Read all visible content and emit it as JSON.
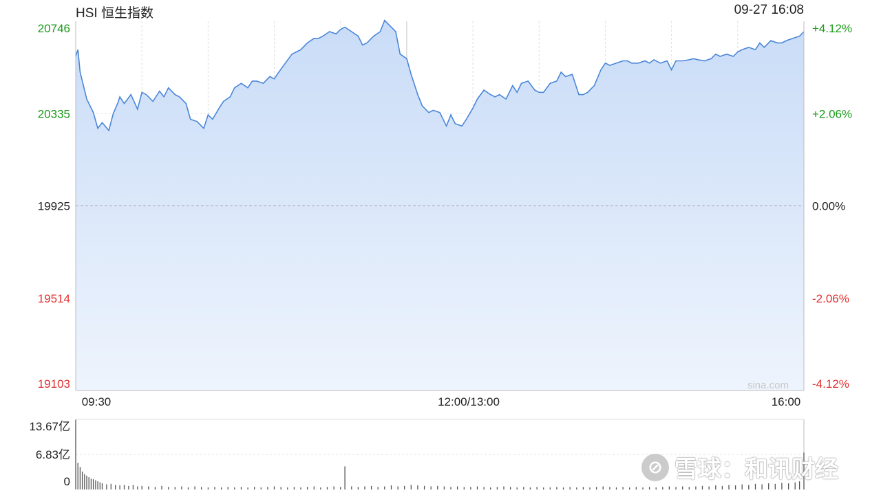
{
  "header": {
    "title": "HSI 恒生指数",
    "timestamp": "09-27 16:08"
  },
  "watermark": {
    "logo": "⊘",
    "text": "雪球：和讯财经"
  },
  "source_label": "sina.com",
  "colors": {
    "line": "#4a86d9",
    "up": "#1a9a1a",
    "down": "#e03030",
    "neutral": "#222222",
    "grid": "#d0d0d0",
    "volume": "#555555"
  },
  "chart_data": [
    {
      "type": "line",
      "title": "HSI 恒生指数",
      "y_ticks_left": [
        "20746",
        "20335",
        "19925",
        "19514",
        "19103"
      ],
      "y_ticks_right": [
        "+4.12%",
        "+2.06%",
        "0.00%",
        "-2.06%",
        "-4.12%"
      ],
      "ylim": [
        19103,
        20746
      ],
      "reference_value": 19925,
      "x_tick_labels": [
        "09:30",
        "12:00/13:00",
        "16:00"
      ],
      "x_range_minutes": [
        0,
        330
      ],
      "series": [
        {
          "x": [
            0,
            1,
            2,
            3,
            5,
            8,
            10,
            12,
            15,
            17,
            19,
            20,
            22,
            25,
            28,
            30,
            32,
            35,
            38,
            40,
            42,
            45,
            47,
            50,
            52,
            55,
            58,
            60,
            62,
            65,
            67,
            70,
            72,
            75,
            78,
            80,
            82,
            85,
            88,
            90,
            92,
            95,
            98,
            100,
            102,
            105,
            108,
            110,
            112,
            115,
            118,
            120,
            122,
            125,
            128,
            130,
            132,
            135,
            138,
            140,
            142,
            145,
            147,
            150,
            152,
            155,
            157,
            160,
            162,
            165,
            168,
            170,
            172,
            175,
            177,
            180,
            182,
            185,
            188,
            190,
            192,
            195,
            198,
            200,
            202,
            205,
            208,
            210,
            212,
            215,
            218,
            220,
            222,
            225,
            228,
            230,
            232,
            235,
            238,
            240,
            242,
            245,
            248,
            250,
            252,
            255,
            258,
            260,
            262,
            265,
            268,
            270,
            272,
            275,
            278,
            280,
            282,
            285,
            288,
            290,
            292,
            295,
            298,
            300,
            302,
            305,
            308,
            310,
            312,
            315,
            318,
            320,
            322,
            325,
            328,
            330
          ],
          "y": [
            20590,
            20620,
            20520,
            20480,
            20400,
            20340,
            20270,
            20295,
            20260,
            20335,
            20380,
            20410,
            20380,
            20420,
            20355,
            20430,
            20420,
            20390,
            20435,
            20410,
            20450,
            20420,
            20410,
            20380,
            20310,
            20300,
            20270,
            20330,
            20310,
            20360,
            20390,
            20410,
            20450,
            20470,
            20450,
            20480,
            20480,
            20470,
            20500,
            20490,
            20520,
            20560,
            20600,
            20610,
            20620,
            20650,
            20670,
            20670,
            20680,
            20700,
            20690,
            20710,
            20720,
            20700,
            20680,
            20640,
            20650,
            20680,
            20700,
            20750,
            20730,
            20700,
            20600,
            20580,
            20510,
            20420,
            20370,
            20340,
            20350,
            20340,
            20280,
            20330,
            20290,
            20280,
            20310,
            20360,
            20400,
            20440,
            20420,
            20410,
            20420,
            20400,
            20460,
            20430,
            20470,
            20480,
            20440,
            20430,
            20430,
            20470,
            20480,
            20520,
            20500,
            20510,
            20420,
            20420,
            20430,
            20460,
            20530,
            20560,
            20550,
            20560,
            20570,
            20570,
            20560,
            20560,
            20570,
            20560,
            20575,
            20560,
            20570,
            20530,
            20570,
            20570,
            20575,
            20580,
            20575,
            20570,
            20580,
            20600,
            20590,
            20600,
            20590,
            20610,
            20620,
            20630,
            20620,
            20650,
            20630,
            20660,
            20650,
            20650,
            20660,
            20670,
            20680,
            20700
          ]
        }
      ]
    },
    {
      "type": "bar",
      "title": "",
      "y_ticks": [
        "13.67亿",
        "6.83亿",
        "0"
      ],
      "ylim": [
        0,
        13.67
      ],
      "unit": "亿",
      "series": [
        {
          "x": [
            0,
            1,
            2,
            3,
            4,
            5,
            6,
            7,
            8,
            9,
            10,
            11,
            12,
            14,
            16,
            18,
            20,
            22,
            24,
            26,
            28,
            30,
            33,
            36,
            39,
            42,
            45,
            48,
            51,
            54,
            57,
            60,
            63,
            66,
            69,
            72,
            75,
            78,
            81,
            84,
            87,
            90,
            93,
            96,
            99,
            102,
            105,
            108,
            111,
            114,
            117,
            120,
            122,
            125,
            128,
            131,
            134,
            137,
            140,
            143,
            146,
            149,
            152,
            155,
            158,
            161,
            164,
            167,
            170,
            173,
            176,
            179,
            182,
            185,
            188,
            191,
            194,
            197,
            200,
            203,
            206,
            209,
            212,
            215,
            218,
            221,
            224,
            227,
            230,
            233,
            236,
            239,
            242,
            245,
            248,
            251,
            254,
            257,
            260,
            263,
            266,
            269,
            272,
            275,
            278,
            281,
            284,
            287,
            290,
            293,
            296,
            299,
            302,
            305,
            308,
            311,
            314,
            317,
            320,
            323,
            326,
            328,
            330
          ],
          "values": [
            13.6,
            5.2,
            4.4,
            3.5,
            3.0,
            2.7,
            2.4,
            2.1,
            2.0,
            1.8,
            1.6,
            1.4,
            1.2,
            1.0,
            1.1,
            0.9,
            0.8,
            0.9,
            0.7,
            0.9,
            0.6,
            0.7,
            0.6,
            0.5,
            0.7,
            0.5,
            0.5,
            0.6,
            0.4,
            0.6,
            0.5,
            0.4,
            0.5,
            0.4,
            0.5,
            0.4,
            0.5,
            0.4,
            0.5,
            0.4,
            0.5,
            0.6,
            0.5,
            0.4,
            0.5,
            0.4,
            0.5,
            0.6,
            0.4,
            0.5,
            0.6,
            0.5,
            4.5,
            0.6,
            0.5,
            0.6,
            0.7,
            0.5,
            0.6,
            0.8,
            0.6,
            0.7,
            0.9,
            0.8,
            0.7,
            0.6,
            0.7,
            0.6,
            0.5,
            0.6,
            0.5,
            0.5,
            0.6,
            0.5,
            0.4,
            0.5,
            0.6,
            0.5,
            0.4,
            0.5,
            0.4,
            0.5,
            0.4,
            0.4,
            0.5,
            0.4,
            0.5,
            0.4,
            0.5,
            0.4,
            0.5,
            0.6,
            0.5,
            0.4,
            0.5,
            0.4,
            0.5,
            0.4,
            0.5,
            0.4,
            0.5,
            0.6,
            0.5,
            0.6,
            0.5,
            0.6,
            0.7,
            0.6,
            0.8,
            0.7,
            0.9,
            0.8,
            1.0,
            0.9,
            1.1,
            1.0,
            1.2,
            1.1,
            1.3,
            1.2,
            1.4,
            1.6,
            7.2
          ]
        }
      ]
    }
  ]
}
